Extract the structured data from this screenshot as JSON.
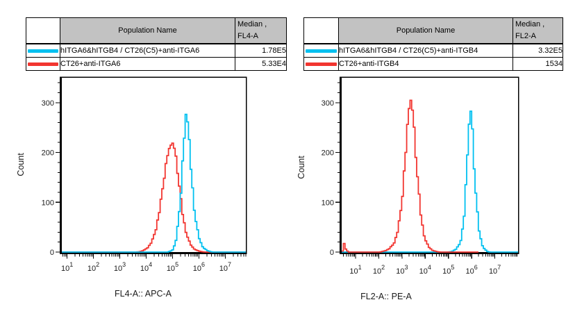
{
  "panels": [
    {
      "name": "FL4-A APC-A panel",
      "table": {
        "headers": {
          "population": "Population Name",
          "median_line1": "Median ,",
          "median_line2": "FL4-A"
        },
        "rows": [
          {
            "color": "#00C0F0",
            "population": "hITGA6&hITGB4 / CT26(C5)+anti-ITGA6",
            "median": "1.78E5"
          },
          {
            "color": "#F23530",
            "population": "CT26+anti-ITGA6",
            "median": "5.33E4"
          }
        ]
      }
    },
    {
      "name": "FL2-A PE-A panel",
      "table": {
        "headers": {
          "population": "Population Name",
          "median_line1": "Median ,",
          "median_line2": "FL2-A"
        },
        "rows": [
          {
            "color": "#00C0F0",
            "population": "hITGA6&hITGB4 / CT26(C5)+anti-ITGB4",
            "median": "3.32E5"
          },
          {
            "color": "#F23530",
            "population": "CT26+anti-ITGB4",
            "median": "1534"
          }
        ]
      }
    }
  ],
  "chart_data": [
    {
      "type": "line",
      "title": "",
      "xlabel": "FL4-A:: APC-A",
      "ylabel": "Count",
      "x_scale": "log10",
      "x_range_log": [
        0.8,
        7.78
      ],
      "x_ticks_exponents": [
        1,
        2,
        3,
        4,
        5,
        6,
        7
      ],
      "y_range": [
        0,
        350
      ],
      "y_ticks": [
        0,
        100,
        200,
        300
      ],
      "y_minor_step": 20,
      "grid": false,
      "legend": "none",
      "series": [
        {
          "name": "CT26+anti-ITGA6",
          "color": "#F23530",
          "median": "5.33E4",
          "points": [
            [
              0.8,
              0
            ],
            [
              3.6,
              0
            ],
            [
              3.75,
              1
            ],
            [
              3.9,
              4
            ],
            [
              4.05,
              10
            ],
            [
              4.2,
              22
            ],
            [
              4.35,
              48
            ],
            [
              4.5,
              90
            ],
            [
              4.6,
              130
            ],
            [
              4.7,
              170
            ],
            [
              4.78,
              196
            ],
            [
              4.88,
              212
            ],
            [
              4.98,
              222
            ],
            [
              5.08,
              200
            ],
            [
              5.18,
              155
            ],
            [
              5.28,
              105
            ],
            [
              5.38,
              66
            ],
            [
              5.5,
              36
            ],
            [
              5.62,
              18
            ],
            [
              5.75,
              8
            ],
            [
              5.9,
              3
            ],
            [
              6.05,
              1
            ],
            [
              6.2,
              0
            ],
            [
              7.78,
              0
            ]
          ]
        },
        {
          "name": "hITGA6&hITGB4 / CT26(C5)+anti-ITGA6",
          "color": "#00C0F0",
          "median": "1.78E5",
          "points": [
            [
              0.8,
              0
            ],
            [
              4.8,
              0
            ],
            [
              4.95,
              3
            ],
            [
              5.05,
              12
            ],
            [
              5.15,
              38
            ],
            [
              5.25,
              95
            ],
            [
              5.33,
              160
            ],
            [
              5.4,
              220
            ],
            [
              5.45,
              265
            ],
            [
              5.48,
              287
            ],
            [
              5.53,
              272
            ],
            [
              5.6,
              222
            ],
            [
              5.68,
              160
            ],
            [
              5.76,
              105
            ],
            [
              5.85,
              62
            ],
            [
              5.95,
              33
            ],
            [
              6.05,
              17
            ],
            [
              6.15,
              8
            ],
            [
              6.28,
              3
            ],
            [
              6.4,
              1
            ],
            [
              6.5,
              0
            ],
            [
              7.78,
              0
            ]
          ]
        }
      ]
    },
    {
      "type": "line",
      "title": "",
      "xlabel": "FL2-A:: PE-A",
      "ylabel": "Count",
      "x_scale": "log10",
      "x_range_log": [
        0.4,
        8.0
      ],
      "x_ticks_exponents": [
        1,
        2,
        3,
        4,
        5,
        6,
        7
      ],
      "y_range": [
        0,
        350
      ],
      "y_ticks": [
        0,
        100,
        200,
        300
      ],
      "y_minor_step": 20,
      "grid": false,
      "legend": "none",
      "series": [
        {
          "name": "hITGA6&hITGB4 / CT26(C5)+anti-ITGB4",
          "color": "#00C0F0",
          "median": "3.32E5",
          "points": [
            [
              0.4,
              0
            ],
            [
              5.0,
              0
            ],
            [
              5.15,
              2
            ],
            [
              5.3,
              6
            ],
            [
              5.45,
              16
            ],
            [
              5.55,
              35
            ],
            [
              5.65,
              75
            ],
            [
              5.73,
              135
            ],
            [
              5.8,
              210
            ],
            [
              5.85,
              265
            ],
            [
              5.89,
              300
            ],
            [
              5.95,
              283
            ],
            [
              6.02,
              230
            ],
            [
              6.09,
              160
            ],
            [
              6.16,
              105
            ],
            [
              6.25,
              55
            ],
            [
              6.35,
              26
            ],
            [
              6.45,
              11
            ],
            [
              6.55,
              4
            ],
            [
              6.65,
              1
            ],
            [
              6.72,
              0
            ],
            [
              8.0,
              0
            ]
          ]
        },
        {
          "name": "CT26+anti-ITGB4",
          "color": "#F23530",
          "median": "1534",
          "points": [
            [
              0.4,
              2
            ],
            [
              0.42,
              28
            ],
            [
              0.48,
              14
            ],
            [
              0.56,
              4
            ],
            [
              0.65,
              0
            ],
            [
              2.0,
              0
            ],
            [
              2.2,
              2
            ],
            [
              2.4,
              6
            ],
            [
              2.6,
              16
            ],
            [
              2.75,
              35
            ],
            [
              2.9,
              75
            ],
            [
              3.0,
              125
            ],
            [
              3.1,
              185
            ],
            [
              3.2,
              250
            ],
            [
              3.28,
              295
            ],
            [
              3.34,
              312
            ],
            [
              3.42,
              290
            ],
            [
              3.5,
              240
            ],
            [
              3.6,
              170
            ],
            [
              3.7,
              110
            ],
            [
              3.8,
              65
            ],
            [
              3.9,
              38
            ],
            [
              4.0,
              20
            ],
            [
              4.15,
              8
            ],
            [
              4.3,
              3
            ],
            [
              4.45,
              1
            ],
            [
              4.6,
              0
            ],
            [
              6.3,
              0
            ]
          ]
        }
      ]
    }
  ]
}
